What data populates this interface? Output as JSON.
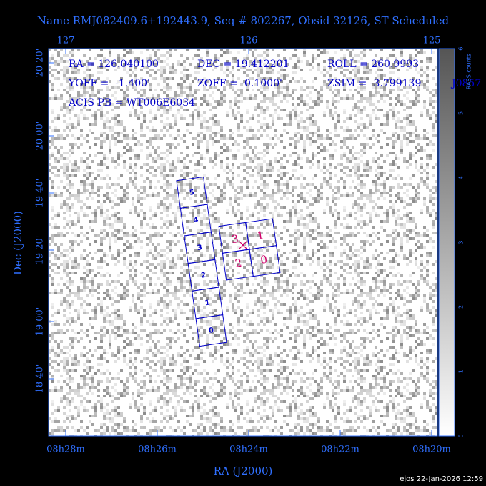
{
  "header": {
    "title": "Name RMJ082409.6+192443.9, Seq # 802267, Obsid 32126, ST Scheduled"
  },
  "axes": {
    "top_ticks": [
      "127",
      "126",
      "125"
    ],
    "bottom_ticks": [
      "08h28m",
      "08h26m",
      "08h24m",
      "08h22m",
      "08h20m"
    ],
    "left_ticks": [
      "20 20'",
      "20 00'",
      "19 40'",
      "19 20'",
      "19 00'",
      "18 40'"
    ],
    "x_label": "RA (J2000)",
    "y_label": "Dec (J2000)"
  },
  "info": {
    "ra": "RA = 126.040100",
    "dec": "DEC = 19.412201",
    "roll": "ROLL = 260.9993",
    "yoff": "YOFF =  -1.400'",
    "zoff": "ZOFF = -0.1000'",
    "zsim": "ZSIM = -3.799139",
    "acis_pb": "ACIS PB = WT006E6034",
    "extra": "J0857"
  },
  "colorbar": {
    "label": "RASS counts",
    "ticks": [
      "0",
      "1",
      "2",
      "3",
      "4",
      "5",
      "6"
    ]
  },
  "acis_s": {
    "chips": [
      "0",
      "1",
      "2",
      "3",
      "4",
      "5"
    ]
  },
  "acis_i": {
    "chips": [
      "0",
      "1",
      "2",
      "3"
    ]
  },
  "footer": {
    "stamp": "ejos 22-Jan-2026 12:59"
  }
}
